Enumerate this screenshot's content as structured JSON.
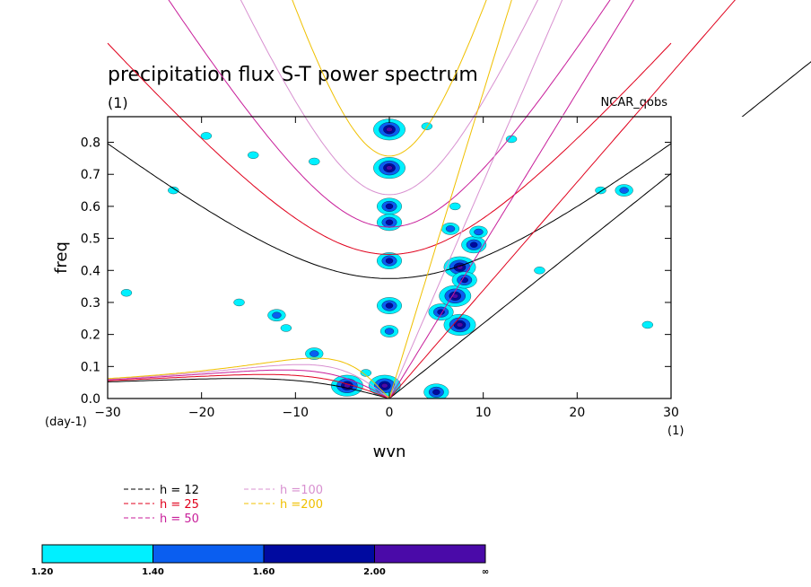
{
  "chart_data": {
    "type": "contour",
    "title": "precipitation flux S-T power spectrum",
    "units_label": "(1)",
    "source_label": "NCAR_qobs",
    "xlabel": "wvn",
    "ylabel": "freq",
    "x_units": "(1)",
    "y_units": "(day-1)",
    "xlim": [
      -30,
      30
    ],
    "ylim": [
      0,
      0.88
    ],
    "x_ticks": [
      -30,
      -20,
      -10,
      0,
      10,
      20,
      30
    ],
    "y_ticks": [
      0.0,
      0.1,
      0.2,
      0.3,
      0.4,
      0.5,
      0.6,
      0.7,
      0.8
    ],
    "dispersion_curves": [
      {
        "label": "h = 12",
        "h": 12,
        "color": "#000000"
      },
      {
        "label": "h = 25",
        "h": 25,
        "color": "#e0001c"
      },
      {
        "label": "h = 50",
        "h": 50,
        "color": "#c81e9a"
      },
      {
        "label": "h =100",
        "h": 100,
        "color": "#d890d0"
      },
      {
        "label": "h =200",
        "h": 200,
        "color": "#f0c000"
      }
    ],
    "colorbar": {
      "levels": [
        "1.20",
        "1.40",
        "1.60",
        "2.00",
        "∞"
      ],
      "colors": [
        "#00f0ff",
        "#0a5ef0",
        "#000aa0",
        "#4a0aa8"
      ]
    },
    "signal_regions": [
      {
        "x": 0,
        "y": 0.84,
        "level": 4
      },
      {
        "x": 0,
        "y": 0.72,
        "level": 4
      },
      {
        "x": 0,
        "y": 0.6,
        "level": 3
      },
      {
        "x": 0,
        "y": 0.55,
        "level": 3
      },
      {
        "x": 0,
        "y": 0.43,
        "level": 3
      },
      {
        "x": 0,
        "y": 0.29,
        "level": 3
      },
      {
        "x": 0,
        "y": 0.21,
        "level": 2
      },
      {
        "x": -0.5,
        "y": 0.04,
        "level": 4
      },
      {
        "x": -4.5,
        "y": 0.04,
        "level": 4
      },
      {
        "x": -2.5,
        "y": 0.08,
        "level": 1
      },
      {
        "x": 5,
        "y": 0.02,
        "level": 3
      },
      {
        "x": 7.5,
        "y": 0.23,
        "level": 4
      },
      {
        "x": 7,
        "y": 0.32,
        "level": 4
      },
      {
        "x": 7.5,
        "y": 0.41,
        "level": 4
      },
      {
        "x": 9,
        "y": 0.48,
        "level": 3
      },
      {
        "x": 6.5,
        "y": 0.53,
        "level": 2
      },
      {
        "x": 7,
        "y": 0.6,
        "level": 1
      },
      {
        "x": 5.5,
        "y": 0.27,
        "level": 3
      },
      {
        "x": 8,
        "y": 0.37,
        "level": 3
      },
      {
        "x": 9.5,
        "y": 0.52,
        "level": 2
      },
      {
        "x": -12,
        "y": 0.26,
        "level": 2
      },
      {
        "x": -11,
        "y": 0.22,
        "level": 1
      },
      {
        "x": -16,
        "y": 0.3,
        "level": 1
      },
      {
        "x": -8,
        "y": 0.14,
        "level": 2
      },
      {
        "x": -19.5,
        "y": 0.82,
        "level": 1
      },
      {
        "x": -14.5,
        "y": 0.76,
        "level": 1
      },
      {
        "x": -8,
        "y": 0.74,
        "level": 1
      },
      {
        "x": 4,
        "y": 0.85,
        "level": 1
      },
      {
        "x": 13,
        "y": 0.81,
        "level": 1
      },
      {
        "x": 25,
        "y": 0.65,
        "level": 2
      },
      {
        "x": -23,
        "y": 0.65,
        "level": 1
      },
      {
        "x": -28,
        "y": 0.33,
        "level": 1
      },
      {
        "x": 27.5,
        "y": 0.23,
        "level": 1
      },
      {
        "x": 22.5,
        "y": 0.65,
        "level": 1
      },
      {
        "x": 16,
        "y": 0.4,
        "level": 1
      }
    ]
  }
}
